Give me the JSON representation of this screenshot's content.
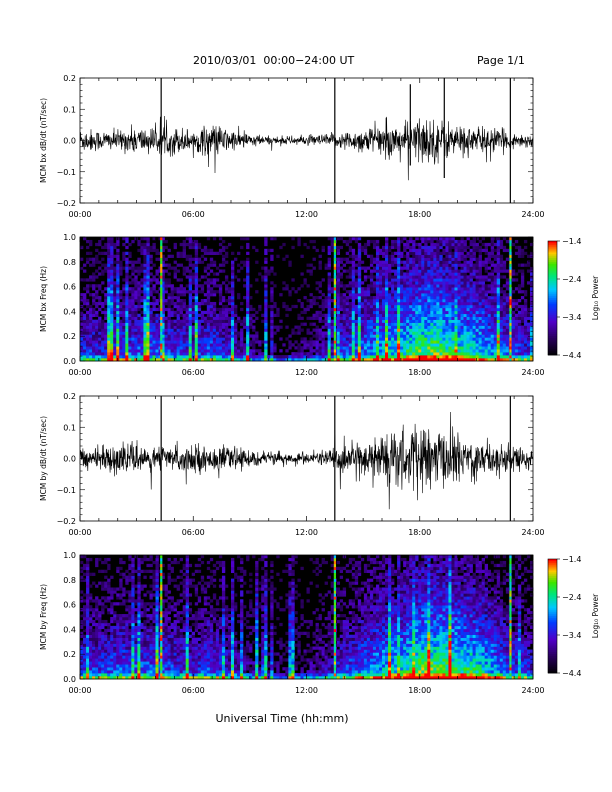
{
  "header": {
    "title": "2010/03/01  00:00−24:00 UT",
    "page": "Page 1/1"
  },
  "chart_data": [
    {
      "type": "line",
      "ylabel": "MCM bx dB/dt (nT/sec)",
      "xlim": [
        0,
        24
      ],
      "ylim": [
        -0.2,
        0.2
      ],
      "xticks": [
        "00:00",
        "06:00",
        "12:00",
        "18:00",
        "24:00"
      ],
      "yticks": [
        "−0.2",
        "−0.1",
        "0.0",
        "0.1",
        "0.2"
      ],
      "envelope": {
        "hours": [
          0,
          1,
          2,
          3,
          4,
          5,
          6,
          7,
          8,
          9,
          10,
          11,
          12,
          13,
          14,
          15,
          16,
          17,
          18,
          19,
          20,
          21,
          22,
          23,
          24
        ],
        "amplitude": [
          0.035,
          0.03,
          0.028,
          0.04,
          0.035,
          0.04,
          0.03,
          0.05,
          0.03,
          0.02,
          0.012,
          0.012,
          0.013,
          0.018,
          0.025,
          0.035,
          0.045,
          0.045,
          0.07,
          0.06,
          0.045,
          0.04,
          0.035,
          0.02,
          0.02
        ]
      },
      "spikes": [
        {
          "t": 4.3,
          "ymin": -0.2,
          "ymax": 0.2
        },
        {
          "t": 13.5,
          "ymin": -0.2,
          "ymax": 0.2
        },
        {
          "t": 22.8,
          "ymin": -0.2,
          "ymax": 0.2
        },
        {
          "t": 17.5,
          "ymin": -0.08,
          "ymax": 0.18
        },
        {
          "t": 19.3,
          "ymin": -0.12,
          "ymax": 0.2
        }
      ]
    },
    {
      "type": "heatmap",
      "ylabel": "MCM bx Freq (Hz)",
      "xlim": [
        0,
        24
      ],
      "ylim": [
        0,
        1.0
      ],
      "xticks": [
        "00:00",
        "06:00",
        "12:00",
        "18:00",
        "24:00"
      ],
      "yticks": [
        "0.0",
        "0.2",
        "0.4",
        "0.6",
        "0.8",
        "1.0"
      ],
      "colorbar": {
        "label": "Log₁₀ Power",
        "ticks": [
          "−1.4",
          "−2.4",
          "−3.4",
          "−4.4"
        ],
        "range": [
          -4.4,
          -1.4
        ]
      },
      "activity_hours": [
        0,
        1,
        2,
        3,
        4,
        5,
        6,
        7,
        8,
        9,
        10,
        11,
        12,
        13,
        14,
        15,
        16,
        17,
        18,
        19,
        20,
        21,
        22,
        23,
        24
      ],
      "activity_level": [
        0.45,
        0.4,
        0.45,
        0.5,
        0.5,
        0.45,
        0.4,
        0.5,
        0.35,
        0.25,
        0.15,
        0.15,
        0.2,
        0.3,
        0.45,
        0.55,
        0.65,
        0.7,
        0.85,
        0.85,
        0.75,
        0.7,
        0.6,
        0.45,
        0.4
      ],
      "vertical_lines": [
        4.3,
        13.5,
        22.8
      ]
    },
    {
      "type": "line",
      "ylabel": "MCM by dB/dt (nT/sec)",
      "xlim": [
        0,
        24
      ],
      "ylim": [
        -0.2,
        0.2
      ],
      "xticks": [
        "00:00",
        "06:00",
        "12:00",
        "18:00",
        "24:00"
      ],
      "yticks": [
        "−0.2",
        "−0.1",
        "0.0",
        "0.1",
        "0.2"
      ],
      "envelope": {
        "hours": [
          0,
          1,
          2,
          3,
          4,
          5,
          6,
          7,
          8,
          9,
          10,
          11,
          12,
          13,
          14,
          15,
          16,
          17,
          18,
          19,
          20,
          21,
          22,
          23,
          24
        ],
        "amplitude": [
          0.03,
          0.035,
          0.035,
          0.04,
          0.035,
          0.035,
          0.04,
          0.035,
          0.03,
          0.025,
          0.018,
          0.015,
          0.018,
          0.025,
          0.04,
          0.05,
          0.07,
          0.08,
          0.09,
          0.08,
          0.07,
          0.06,
          0.05,
          0.035,
          0.03
        ]
      },
      "spikes": [
        {
          "t": 4.3,
          "ymin": -0.2,
          "ymax": 0.2
        },
        {
          "t": 13.5,
          "ymin": -0.2,
          "ymax": 0.2
        },
        {
          "t": 22.8,
          "ymin": -0.2,
          "ymax": 0.2
        }
      ]
    },
    {
      "type": "heatmap",
      "ylabel": "MCM by Freq (Hz)",
      "xlim": [
        0,
        24
      ],
      "ylim": [
        0,
        1.0
      ],
      "xticks": [
        "00:00",
        "06:00",
        "12:00",
        "18:00",
        "24:00"
      ],
      "yticks": [
        "0.0",
        "0.2",
        "0.4",
        "0.6",
        "0.8",
        "1.0"
      ],
      "colorbar": {
        "label": "Log₁₀ Power",
        "ticks": [
          "−1.4",
          "−2.4",
          "−3.4",
          "−4.4"
        ],
        "range": [
          -4.4,
          -1.4
        ]
      },
      "activity_hours": [
        0,
        1,
        2,
        3,
        4,
        5,
        6,
        7,
        8,
        9,
        10,
        11,
        12,
        13,
        14,
        15,
        16,
        17,
        18,
        19,
        20,
        21,
        22,
        23,
        24
      ],
      "activity_level": [
        0.45,
        0.45,
        0.5,
        0.5,
        0.5,
        0.45,
        0.4,
        0.5,
        0.35,
        0.25,
        0.15,
        0.15,
        0.2,
        0.3,
        0.45,
        0.55,
        0.65,
        0.7,
        0.85,
        0.85,
        0.8,
        0.75,
        0.6,
        0.45,
        0.4
      ],
      "vertical_lines": [
        4.3,
        13.5,
        22.8
      ]
    }
  ],
  "xlabel": "Universal Time (hh:mm)"
}
